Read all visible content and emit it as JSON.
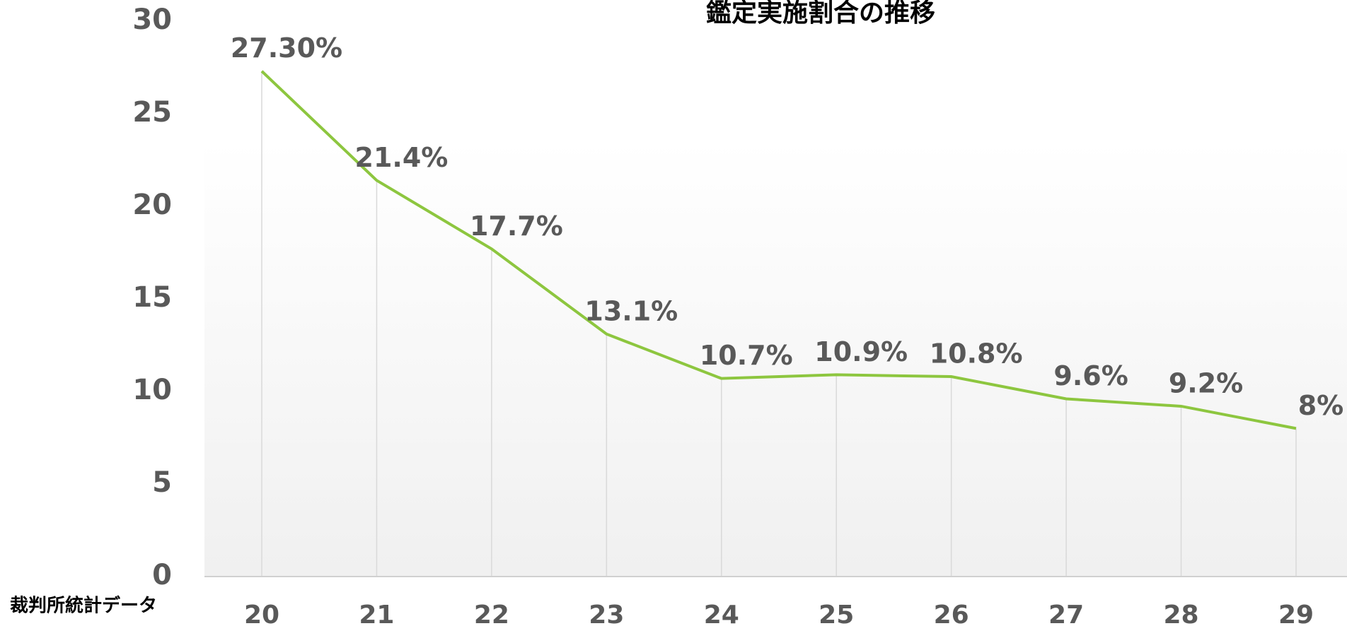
{
  "chart_data": {
    "type": "line",
    "title": "鑑定実施割合の推移",
    "annotation": "裁判所統計データ",
    "categories": [
      "20",
      "21",
      "22",
      "23",
      "24",
      "25",
      "26",
      "27",
      "28",
      "29"
    ],
    "values": [
      27.3,
      21.4,
      17.7,
      13.1,
      10.7,
      10.9,
      10.8,
      9.6,
      9.2,
      8
    ],
    "value_labels": [
      "27.30%",
      "21.4%",
      "17.7%",
      "13.1%",
      "10.7%",
      "10.9%",
      "10.8%",
      "9.6%",
      "9.2%",
      "8%"
    ],
    "color": "#8dc63f",
    "ylim": [
      0,
      30
    ],
    "yticks": [
      0,
      5,
      10,
      15,
      20,
      25,
      30
    ],
    "grid": false
  }
}
